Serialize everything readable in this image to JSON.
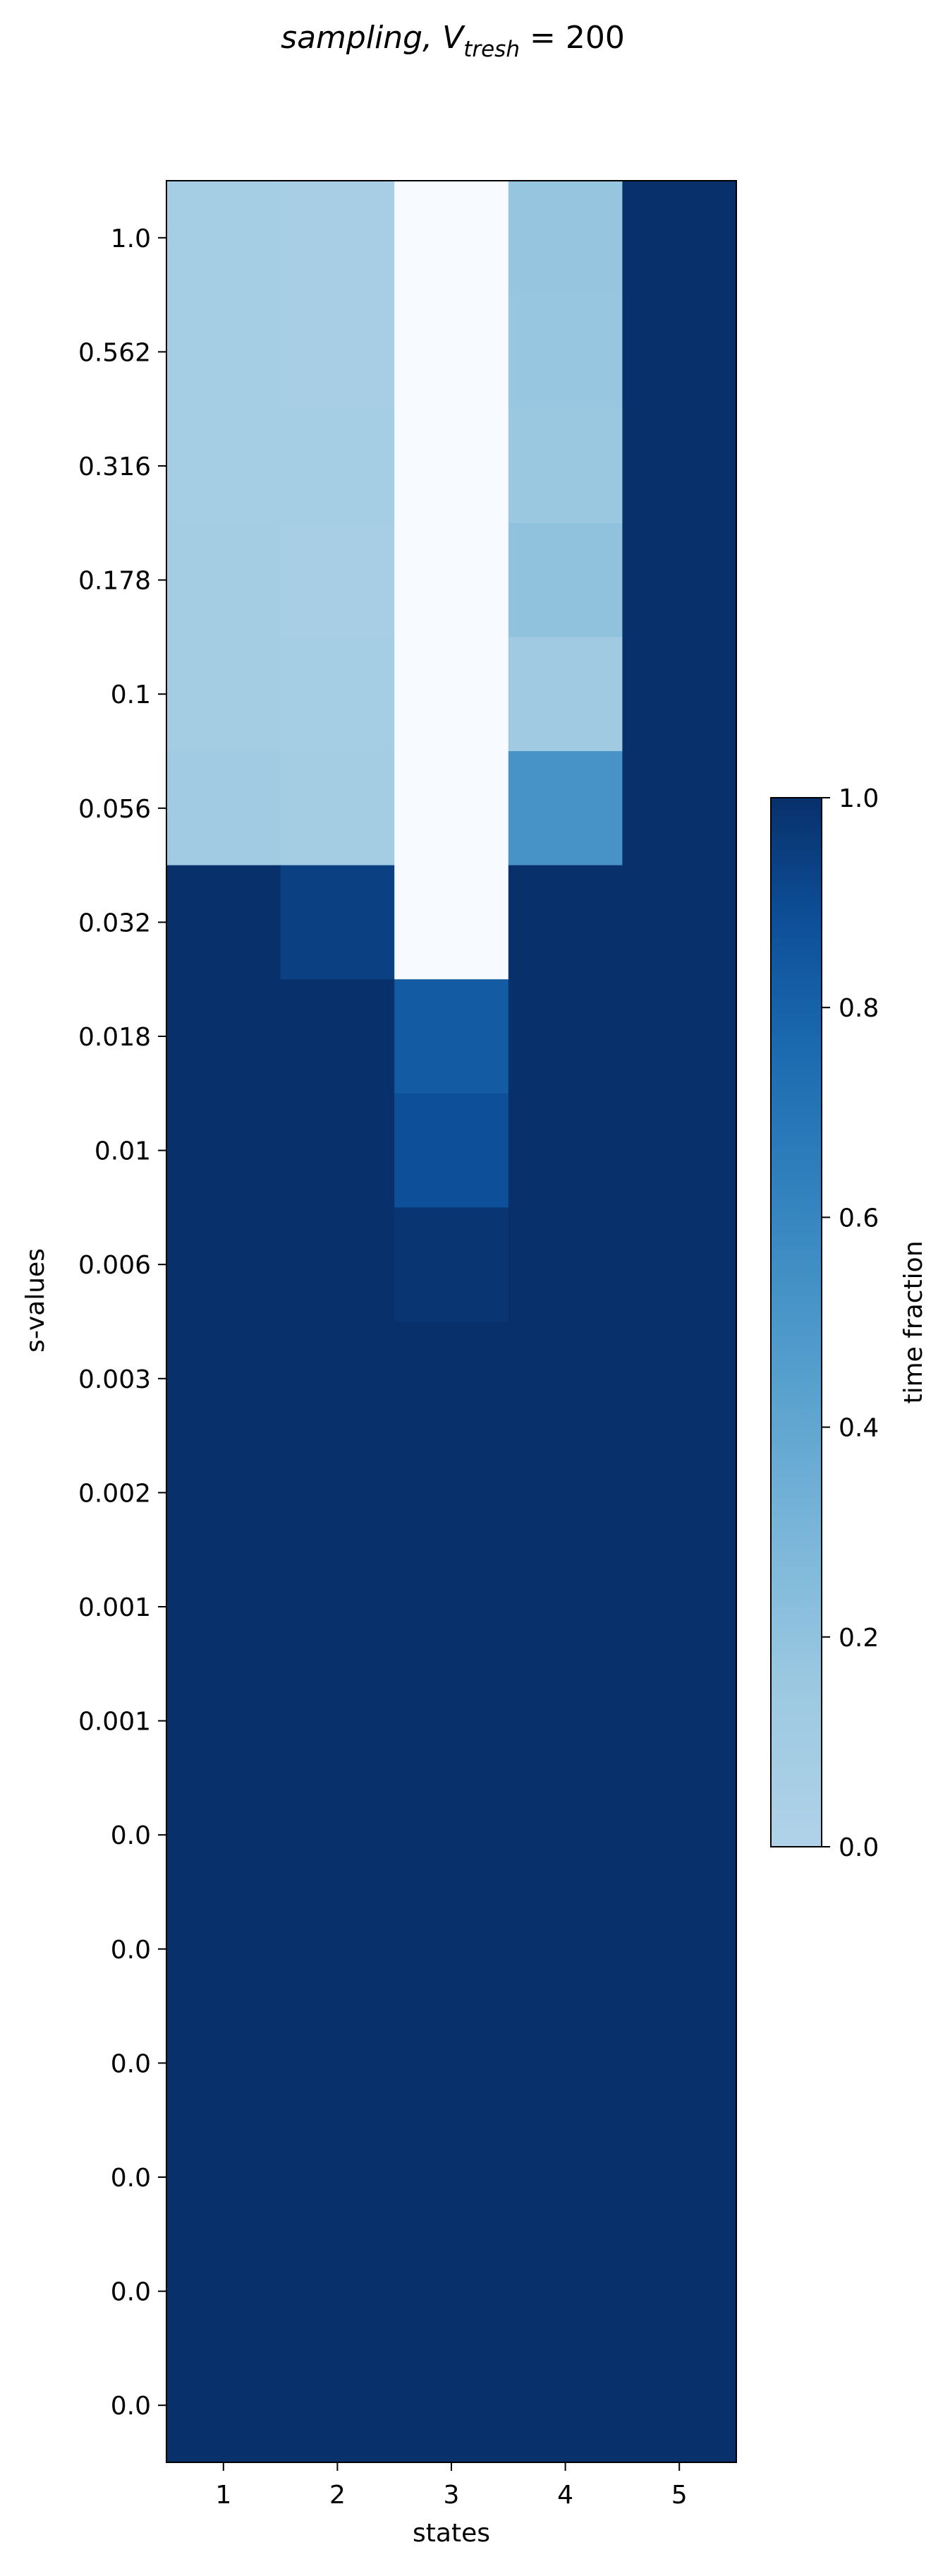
{
  "chart_data": {
    "type": "heatmap",
    "title": {
      "prefix": "sampling, ",
      "var": "V",
      "sub": "tresh",
      "eq": " = 200"
    },
    "xlabel": "states",
    "ylabel": "s-values",
    "x_categories": [
      "1",
      "2",
      "3",
      "4",
      "5"
    ],
    "y_categories": [
      "1.0",
      "0.562",
      "0.316",
      "0.178",
      "0.1",
      "0.056",
      "0.032",
      "0.018",
      "0.01",
      "0.006",
      "0.003",
      "0.002",
      "0.001",
      "0.001",
      "0.0",
      "0.0",
      "0.0",
      "0.0",
      "0.0",
      "0.0"
    ],
    "values": [
      [
        0.08,
        0.07,
        0.0,
        0.18,
        1.0
      ],
      [
        0.08,
        0.07,
        0.0,
        0.17,
        1.0
      ],
      [
        0.08,
        0.08,
        0.0,
        0.16,
        1.0
      ],
      [
        0.09,
        0.07,
        0.0,
        0.2,
        1.0
      ],
      [
        0.09,
        0.08,
        0.0,
        0.13,
        1.0
      ],
      [
        0.12,
        0.09,
        0.0,
        0.52,
        1.0
      ],
      [
        1.0,
        0.94,
        0.0,
        1.0,
        1.0
      ],
      [
        1.0,
        1.0,
        0.83,
        1.0,
        1.0
      ],
      [
        1.0,
        1.0,
        0.88,
        1.0,
        1.0
      ],
      [
        1.0,
        1.0,
        0.98,
        1.0,
        1.0
      ],
      [
        1.0,
        1.0,
        1.0,
        1.0,
        1.0
      ],
      [
        1.0,
        1.0,
        1.0,
        1.0,
        1.0
      ],
      [
        1.0,
        1.0,
        1.0,
        1.0,
        1.0
      ],
      [
        1.0,
        1.0,
        1.0,
        1.0,
        1.0
      ],
      [
        1.0,
        1.0,
        1.0,
        1.0,
        1.0
      ],
      [
        1.0,
        1.0,
        1.0,
        1.0,
        1.0
      ],
      [
        1.0,
        1.0,
        1.0,
        1.0,
        1.0
      ],
      [
        1.0,
        1.0,
        1.0,
        1.0,
        1.0
      ],
      [
        1.0,
        1.0,
        1.0,
        1.0,
        1.0
      ],
      [
        1.0,
        1.0,
        1.0,
        1.0,
        1.0
      ]
    ],
    "zero_color": "#f7fbff",
    "colormap": "Blues",
    "colorbar": {
      "label": "time fraction",
      "range": [
        0,
        1
      ],
      "ticks": [
        "0.0",
        "0.2",
        "0.4",
        "0.6",
        "0.8",
        "1.0"
      ]
    }
  }
}
